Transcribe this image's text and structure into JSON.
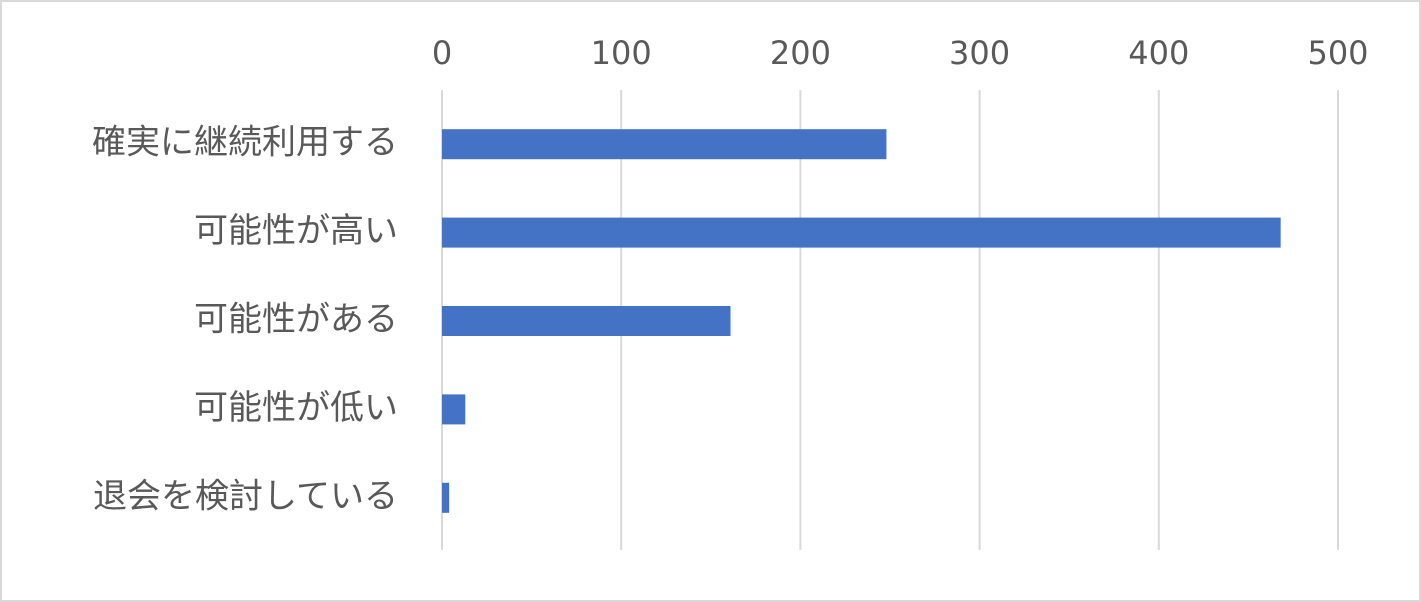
{
  "chart_data": {
    "type": "bar",
    "orientation": "horizontal",
    "categories": [
      "確実に継続利用する",
      "可能性が高い",
      "可能性がある",
      "可能性が低い",
      "退会を検討している"
    ],
    "values": [
      248,
      468,
      161,
      13,
      4
    ],
    "color": "#4472c4",
    "xlim": [
      0,
      500
    ],
    "xticks": [
      0,
      100,
      200,
      300,
      400,
      500
    ],
    "grid": true
  }
}
